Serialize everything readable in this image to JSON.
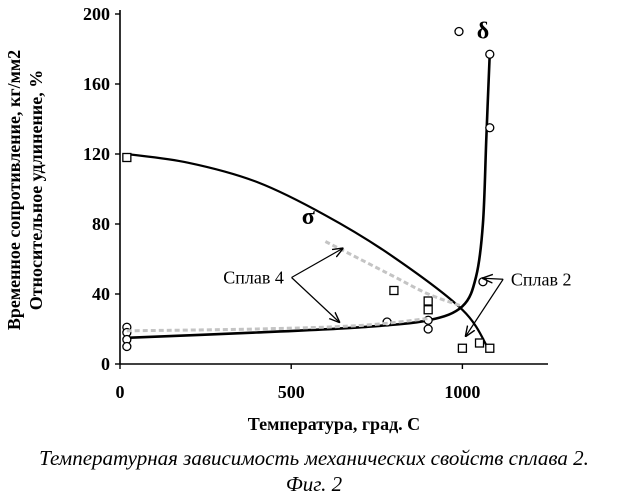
{
  "caption": "Температурная зависимость механических свойств сплава 2.",
  "figure_label": "Фиг. 2",
  "chart_data": {
    "type": "line",
    "xlabel": "Температура, град. С",
    "ylabel": [
      "Временное сопротивление, кг/мм2",
      "Относительное удлинение, %"
    ],
    "xlim": [
      0,
      1250
    ],
    "ylim": [
      0,
      200
    ],
    "x_ticks": [
      0,
      500,
      1000
    ],
    "y_ticks": [
      0,
      40,
      80,
      120,
      160,
      200
    ],
    "grid": false,
    "series": [
      {
        "name": "σ",
        "marker": "square",
        "curve": {
          "x": [
            20,
            200,
            400,
            600,
            800,
            1000,
            1075
          ],
          "y": [
            120,
            115,
            104,
            85,
            61,
            31,
            9
          ]
        },
        "points": {
          "x": [
            20,
            800,
            900,
            900,
            1000,
            1050,
            1080
          ],
          "y": [
            118,
            42,
            36,
            31,
            9,
            12,
            9
          ]
        }
      },
      {
        "name": "δ",
        "marker": "circle",
        "curve": {
          "x": [
            20,
            400,
            700,
            900,
            1000,
            1040,
            1060,
            1070,
            1080
          ],
          "y": [
            15,
            18,
            21,
            25,
            33,
            50,
            80,
            130,
            178
          ]
        },
        "points": {
          "x": [
            20,
            20,
            20,
            20,
            780,
            900,
            900,
            1060,
            1080,
            1080,
            990
          ],
          "y": [
            21,
            18,
            14,
            10,
            24,
            25,
            20,
            47,
            135,
            177,
            190
          ]
        }
      },
      {
        "name": "Сплав 4",
        "marker": "none",
        "faint": true,
        "curves": [
          {
            "x": [
              20,
              400,
              700,
              900
            ],
            "y": [
              19,
              20,
              22,
              26
            ]
          },
          {
            "x": [
              600,
              800,
              900,
              1000
            ],
            "y": [
              70,
              50,
              40,
              33
            ]
          }
        ]
      }
    ],
    "annotations": [
      {
        "text": "σ",
        "x": 550,
        "y": 80,
        "arrow_to": []
      },
      {
        "text": "δ",
        "x": 1060,
        "y": 186,
        "arrow_to": []
      },
      {
        "text": "Сплав 4",
        "x": 390,
        "y": 46,
        "arrow_to": [
          [
            650,
            66
          ],
          [
            640,
            24
          ]
        ]
      },
      {
        "text": "Сплав 2",
        "x": 1230,
        "y": 45,
        "arrow_to": [
          [
            1060,
            49
          ],
          [
            1010,
            16
          ]
        ]
      }
    ]
  }
}
